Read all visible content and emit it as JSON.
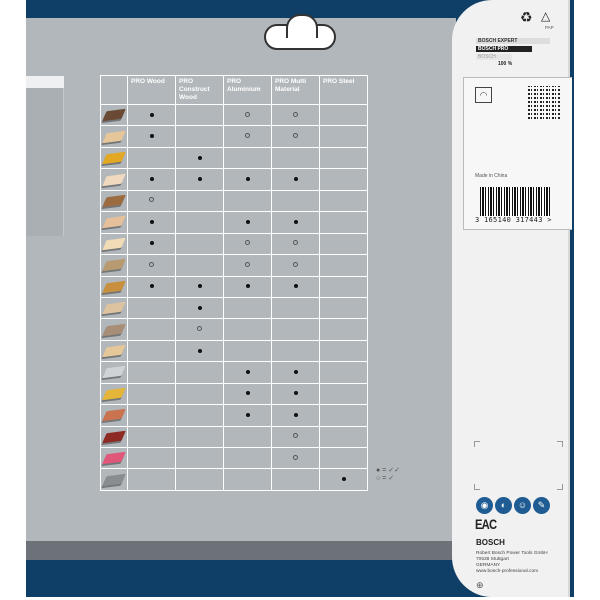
{
  "table": {
    "columns": [
      "PRO Wood",
      "PRO Construct Wood",
      "PRO Aluminium",
      "PRO Multi Material",
      "PRO Steel"
    ],
    "rows": [
      {
        "material_color": "#6b4a35",
        "marks": [
          "full",
          "",
          "half",
          "half",
          ""
        ]
      },
      {
        "material_color": "#e7c79a",
        "marks": [
          "full",
          "",
          "half",
          "half",
          ""
        ]
      },
      {
        "material_color": "#e2a824",
        "marks": [
          "",
          "full",
          "",
          "",
          ""
        ]
      },
      {
        "material_color": "#efd9bf",
        "marks": [
          "full",
          "full",
          "full",
          "full",
          ""
        ]
      },
      {
        "material_color": "#9c6b3f",
        "marks": [
          "half",
          "",
          "",
          "",
          ""
        ]
      },
      {
        "material_color": "#e6c09a",
        "marks": [
          "full",
          "",
          "full",
          "full",
          ""
        ]
      },
      {
        "material_color": "#f0dcb6",
        "marks": [
          "full",
          "",
          "half",
          "half",
          ""
        ]
      },
      {
        "material_color": "#b79a70",
        "marks": [
          "half",
          "",
          "half",
          "half",
          ""
        ]
      },
      {
        "material_color": "#c8903e",
        "marks": [
          "full",
          "full",
          "full",
          "full",
          ""
        ]
      },
      {
        "material_color": "#ddc3a0",
        "marks": [
          "",
          "full",
          "",
          "",
          ""
        ]
      },
      {
        "material_color": "#a88d77",
        "marks": [
          "",
          "half",
          "",
          "",
          ""
        ]
      },
      {
        "material_color": "#e6c79a",
        "marks": [
          "",
          "full",
          "",
          "",
          ""
        ]
      },
      {
        "material_color": "#cfd3d6",
        "marks": [
          "",
          "",
          "full",
          "full",
          ""
        ]
      },
      {
        "material_color": "#e5b53a",
        "marks": [
          "",
          "",
          "full",
          "full",
          ""
        ]
      },
      {
        "material_color": "#c9734f",
        "marks": [
          "",
          "",
          "full",
          "full",
          ""
        ]
      },
      {
        "material_color": "#8e2a24",
        "marks": [
          "",
          "",
          "",
          "half",
          ""
        ]
      },
      {
        "material_color": "#e0577a",
        "marks": [
          "",
          "",
          "",
          "half",
          ""
        ]
      },
      {
        "material_color": "#8a8d90",
        "marks": [
          "",
          "",
          "",
          "",
          "full"
        ]
      }
    ]
  },
  "legend": {
    "full": "● = ✓✓",
    "half": "○ = ✓"
  },
  "card": {
    "grades": [
      "BOSCH EXPERT",
      "BOSCH PRO",
      "BOSCH"
    ],
    "grade_value": "100 %",
    "recycle_label": "PAP",
    "made_in": "Made in China",
    "barcode": "3 165140 317443 >",
    "brand": "BOSCH",
    "address": [
      "Robert Bosch Power Tools GmbH",
      "70538 Stuttgart",
      "GERMANY",
      "www.bosch-professional.com"
    ],
    "cert": "EAC"
  },
  "colors": {
    "blue": "#0f3f66",
    "gray": "#b1b7bb",
    "dark_gray": "#6d7278",
    "card": "#f1f1f1"
  }
}
